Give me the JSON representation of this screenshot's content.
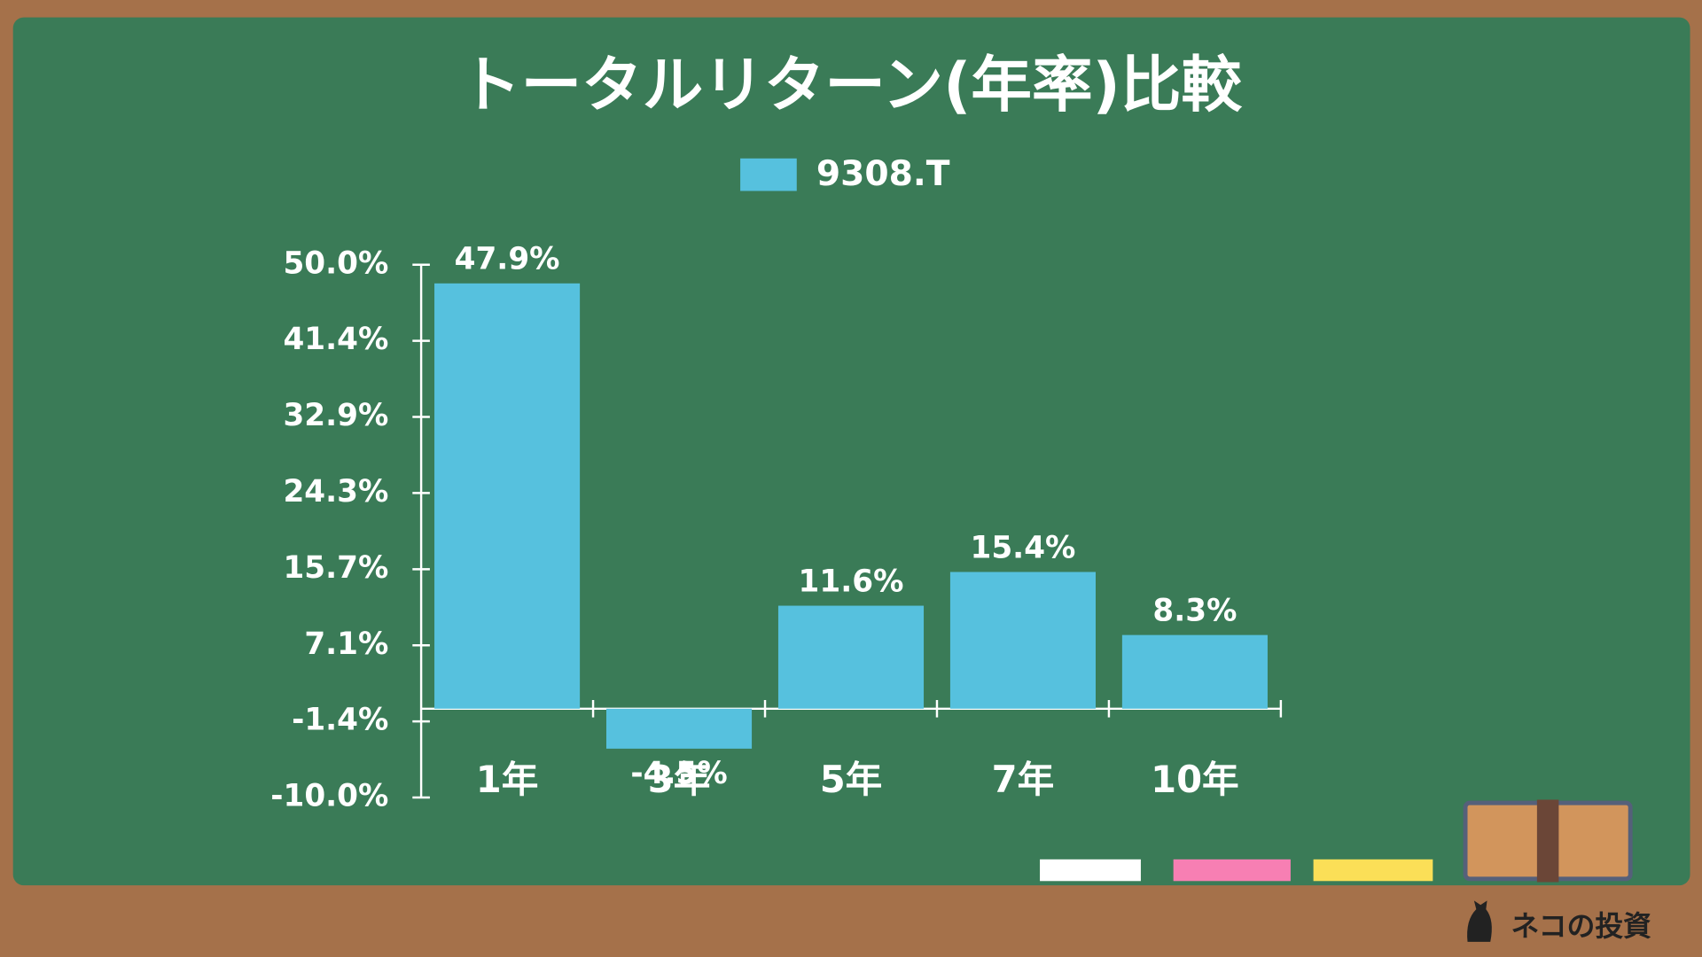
{
  "chart_data": {
    "type": "bar",
    "title": "トータルリターン(年率)比較",
    "categories": [
      "1年",
      "3年",
      "5年",
      "7年",
      "10年"
    ],
    "series": [
      {
        "name": "9308.T",
        "color": "#56c1de",
        "values": [
          47.9,
          -4.5,
          11.6,
          15.4,
          8.3
        ],
        "value_labels": [
          "47.9%",
          "-4.5%",
          "11.6%",
          "15.4%",
          "8.3%"
        ]
      }
    ],
    "ylim": [
      -10,
      50
    ],
    "yticks": [
      {
        "value": -10,
        "label": "-10.0%"
      },
      {
        "value": -1.43,
        "label": "-1.4%"
      },
      {
        "value": 7.14,
        "label": "7.1%"
      },
      {
        "value": 15.71,
        "label": "15.7%"
      },
      {
        "value": 24.29,
        "label": "24.3%"
      },
      {
        "value": 32.86,
        "label": "32.9%"
      },
      {
        "value": 41.43,
        "label": "41.4%"
      },
      {
        "value": 50,
        "label": "50.0%"
      }
    ],
    "grid": false,
    "legend": "top",
    "watermark": "ネコの投資"
  }
}
